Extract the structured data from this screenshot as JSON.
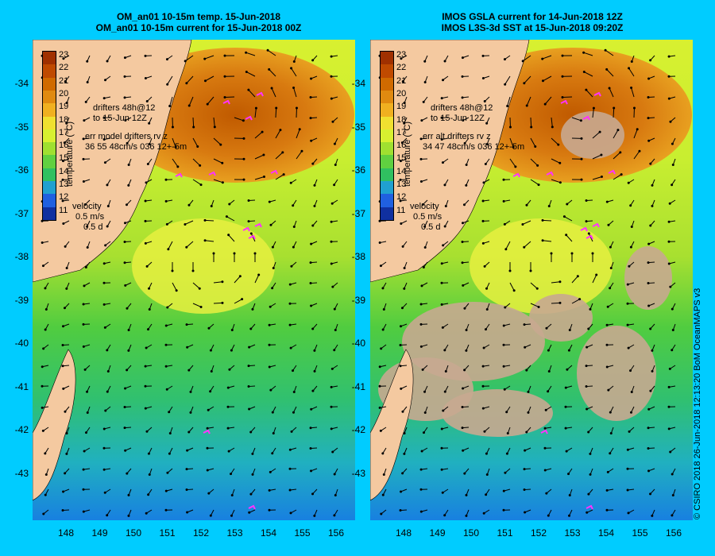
{
  "left_panel": {
    "title_line1": "OM_an01 10-15m temp. 15-Jun-2018",
    "title_line2": "OM_an01 10-15m current for 15-Jun-2018 00Z",
    "drifter_label_line1": "drifters 48h@12",
    "drifter_label_line2": "to 15-Jun 12Z",
    "err_line1": "err model drifters rv z",
    "err_line2": "36 55 48cm/s 036 12+-5m",
    "velocity_label": "velocity",
    "velocity_scale": "0.5 m/s",
    "velocity_time": "0.5 d"
  },
  "right_panel": {
    "title_line1": "IMOS GSLA current for 14-Jun-2018 12Z",
    "title_line2": "IMOS L3S-3d SST at 15-Jun-2018 09:20Z",
    "drifter_label_line1": "drifters 48h@12",
    "drifter_label_line2": "to 15-Jun 12Z",
    "err_line1": "err alt drifters rv z",
    "err_line2": "34 47 48cm/s 036 12+-5m",
    "velocity_label": "velocity",
    "velocity_scale": "0.5 m/s",
    "velocity_time": "0.5 d"
  },
  "colorbar": {
    "label": "temperature (°C)",
    "ticks": [
      "23",
      "22",
      "21",
      "20",
      "19",
      "18",
      "17",
      "16",
      "15",
      "14",
      "13",
      "12",
      "11"
    ],
    "colors": [
      "#a03000",
      "#c04a00",
      "#d06a00",
      "#e08a10",
      "#f0b020",
      "#f0e030",
      "#d8f030",
      "#a0e030",
      "#60d040",
      "#30c060",
      "#20a0d0",
      "#2060e0",
      "#1030a0"
    ]
  },
  "axes": {
    "lat_ticks": [
      "-34",
      "-35",
      "-36",
      "-37",
      "-38",
      "-39",
      "-40",
      "-41",
      "-42",
      "-43"
    ],
    "lon_ticks": [
      "148",
      "149",
      "150",
      "151",
      "152",
      "153",
      "154",
      "155",
      "156"
    ]
  },
  "credit": "© CSIRO 2018  26-Jun-2018 12:13:20 BoM OceanMAPS v3",
  "colors": {
    "background": "#00ccff",
    "land": "#f4c9a0",
    "drifter": "#ff33ff",
    "cloud": "#c8a890"
  }
}
